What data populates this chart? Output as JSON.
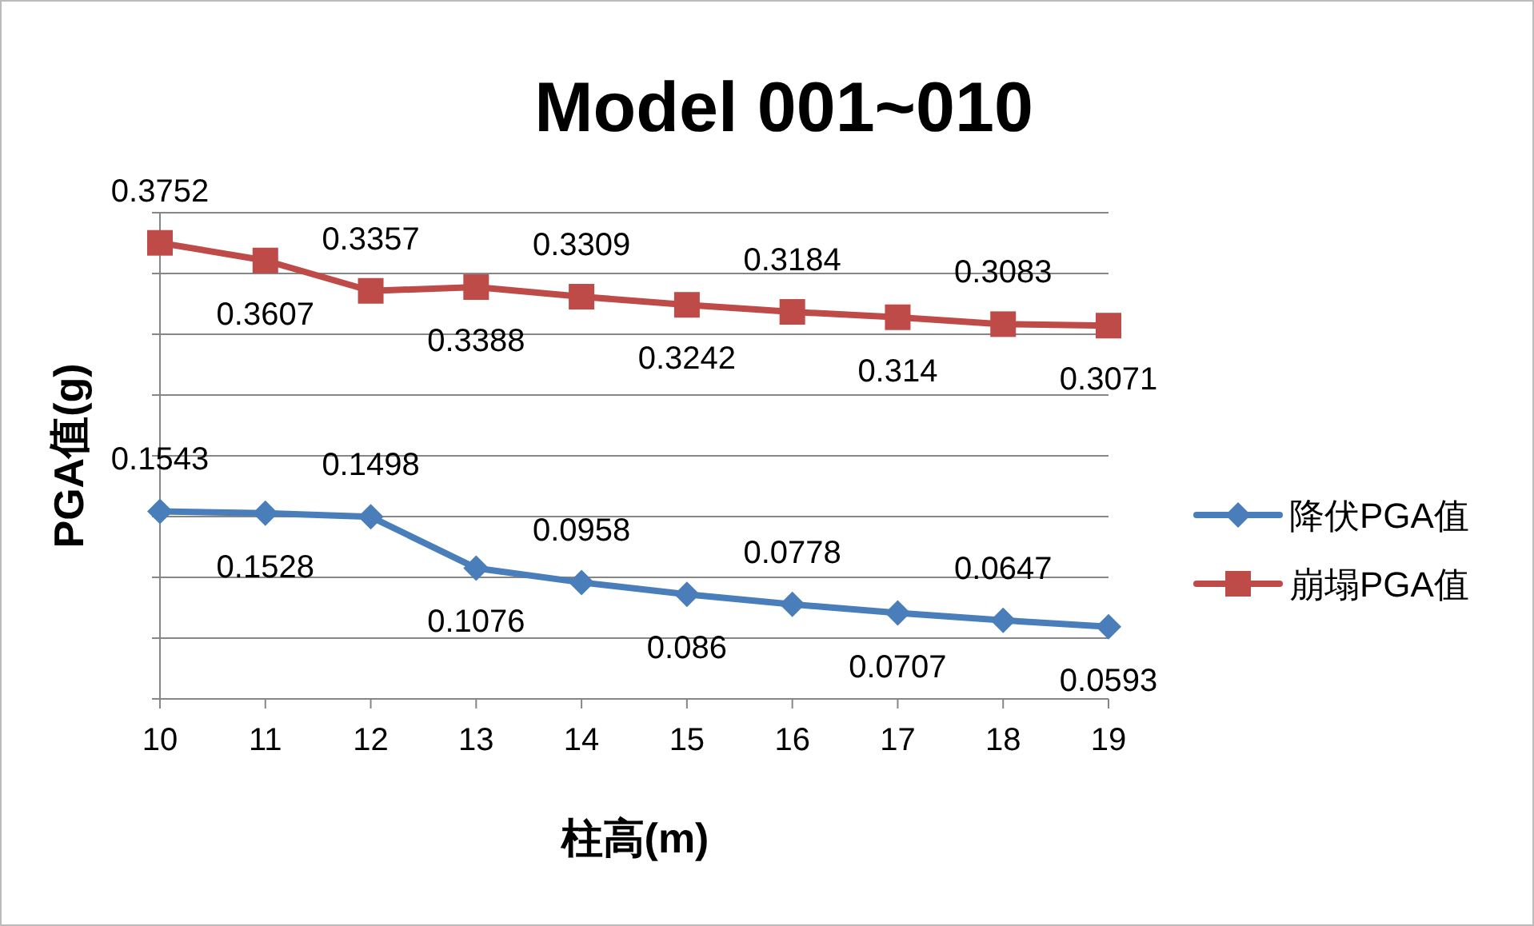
{
  "chart_data": {
    "type": "line",
    "title": "Model 001~010",
    "xlabel": "柱高(m)",
    "ylabel": "PGA值(g)",
    "categories": [
      "10",
      "11",
      "12",
      "13",
      "14",
      "15",
      "16",
      "17",
      "18",
      "19"
    ],
    "series": [
      {
        "name": "降伏PGA值",
        "color": "#4a7ebb",
        "marker": "diamond",
        "values": [
          0.1543,
          0.1528,
          0.1498,
          0.1076,
          0.0958,
          0.086,
          0.0778,
          0.0707,
          0.0647,
          0.0593
        ]
      },
      {
        "name": "崩塌PGA值",
        "color": "#be4b48",
        "marker": "square",
        "values": [
          0.3752,
          0.3607,
          0.3357,
          0.3388,
          0.3309,
          0.3242,
          0.3184,
          0.314,
          0.3083,
          0.3071
        ]
      }
    ],
    "ylim": [
      0,
      0.4
    ],
    "yticks": [
      {
        "value": 0,
        "label": null
      },
      {
        "value": 0.05,
        "label": null
      },
      {
        "value": 0.1,
        "label": null
      },
      {
        "value": 0.15,
        "label": null
      },
      {
        "value": 0.2,
        "label": null
      },
      {
        "value": 0.25,
        "label": null
      },
      {
        "value": 0.3,
        "label": null
      },
      {
        "value": 0.35,
        "label": null
      },
      {
        "value": 0.4,
        "label": null
      }
    ],
    "tick_labels": "x",
    "grid": "y",
    "data_labels": true,
    "legend": "right",
    "line_style": "solid"
  }
}
